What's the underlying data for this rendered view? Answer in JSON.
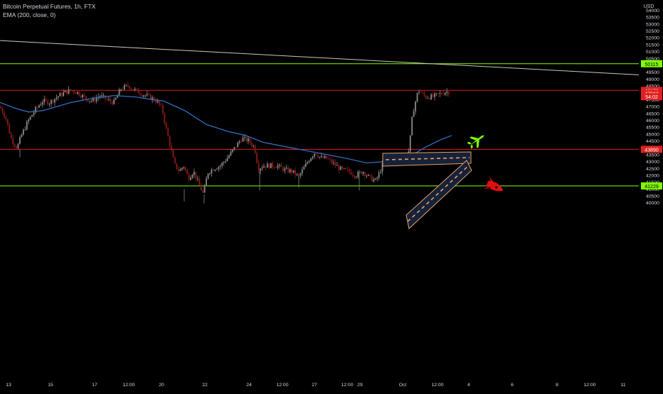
{
  "header": {
    "symbol_line": "Bitcoin Perpetual Futures, 1h, FTX",
    "indicator_line": "EMA (200, close, 0)"
  },
  "price_axis": {
    "currency_label": "USD",
    "ticks": [
      "54000",
      "53500",
      "53000",
      "52500",
      "52000",
      "51500",
      "51000",
      "50500",
      "50000",
      "49500",
      "49000",
      "48500",
      "48000",
      "47500",
      "47000",
      "46500",
      "46000",
      "45500",
      "45000",
      "44500",
      "44000",
      "43500",
      "43000",
      "42500",
      "42000",
      "41500",
      "41000",
      "40500",
      "40000"
    ]
  },
  "time_axis": {
    "labels": [
      "13",
      "15",
      "17",
      "12:00",
      "20",
      "22",
      "24",
      "12:00",
      "27",
      "12:00",
      "29",
      "Oct",
      "12:00",
      "4",
      "6",
      "8",
      "12:00",
      "11"
    ]
  },
  "price_tags": [
    {
      "id": "level-50115",
      "text": "50115",
      "price": 50115,
      "color": "#7fff00",
      "text_color": "#000000"
    },
    {
      "id": "level-48176",
      "text": "48176",
      "price": 48176,
      "color": "#e02020",
      "text_color": "#ffffff"
    },
    {
      "id": "last-price",
      "text": "47962",
      "price": 47962,
      "color": "#e02020",
      "text_color": "#ffffff"
    },
    {
      "id": "countdown",
      "text": "54:02",
      "price": 47715,
      "color": "#e02020",
      "text_color": "#ffffff"
    },
    {
      "id": "level-43890",
      "text": "43890",
      "price": 43890,
      "color": "#e02020",
      "text_color": "#ffffff"
    },
    {
      "id": "level-41229",
      "text": "41229",
      "price": 41229,
      "color": "#7fff00",
      "text_color": "#000000"
    }
  ],
  "colors": {
    "background": "#000000",
    "up_candle": "#8a8a8a",
    "down_candle": "#8b1a1a",
    "ema": "#2f6fbf",
    "support_green": "#7fff00",
    "resistance_red": "#e02020",
    "trendline": "#c8c8b4",
    "runway": "#16213a",
    "runway_edge": "#e8a060",
    "plane_icon": "#7fff00",
    "rocket_icon": "#e01010",
    "axis_text": "#d1d4dc"
  },
  "chart_data": {
    "type": "candlestick",
    "instrument": "Bitcoin Perpetual Futures",
    "timeframe": "1h",
    "exchange": "FTX",
    "ylim": [
      39900,
      54300
    ],
    "x_tick_labels": [
      "13",
      "15",
      "17",
      "12:00",
      "20",
      "22",
      "24",
      "12:00",
      "27",
      "12:00",
      "29",
      "Oct",
      "12:00",
      "4",
      "6",
      "8",
      "12:00",
      "11"
    ],
    "price_path": [
      [
        0,
        47000
      ],
      [
        8,
        46200
      ],
      [
        16,
        44600
      ],
      [
        24,
        44000
      ],
      [
        30,
        44900
      ],
      [
        40,
        46000
      ],
      [
        50,
        46800
      ],
      [
        60,
        47400
      ],
      [
        70,
        47300
      ],
      [
        80,
        47700
      ],
      [
        90,
        48000
      ],
      [
        100,
        48200
      ],
      [
        110,
        48000
      ],
      [
        120,
        47600
      ],
      [
        130,
        47400
      ],
      [
        140,
        47800
      ],
      [
        150,
        47500
      ],
      [
        160,
        47300
      ],
      [
        170,
        48300
      ],
      [
        180,
        48500
      ],
      [
        190,
        48200
      ],
      [
        200,
        47900
      ],
      [
        210,
        47700
      ],
      [
        220,
        47400
      ],
      [
        228,
        46800
      ],
      [
        233,
        45500
      ],
      [
        240,
        44000
      ],
      [
        245,
        42800
      ],
      [
        252,
        42300
      ],
      [
        258,
        42700
      ],
      [
        265,
        41800
      ],
      [
        272,
        42300
      ],
      [
        280,
        41300
      ],
      [
        286,
        40600
      ],
      [
        292,
        42200
      ],
      [
        300,
        42500
      ],
      [
        310,
        42700
      ],
      [
        320,
        43300
      ],
      [
        330,
        44000
      ],
      [
        340,
        44700
      ],
      [
        350,
        44500
      ],
      [
        358,
        44000
      ],
      [
        363,
        42500
      ],
      [
        370,
        42700
      ],
      [
        380,
        42700
      ],
      [
        390,
        42700
      ],
      [
        400,
        42400
      ],
      [
        410,
        42300
      ],
      [
        420,
        41900
      ],
      [
        428,
        42600
      ],
      [
        435,
        43200
      ],
      [
        443,
        43700
      ],
      [
        450,
        43300
      ],
      [
        460,
        43200
      ],
      [
        470,
        42800
      ],
      [
        480,
        42400
      ],
      [
        490,
        42300
      ],
      [
        500,
        42000
      ],
      [
        510,
        42300
      ],
      [
        520,
        41800
      ],
      [
        528,
        41600
      ],
      [
        532,
        42000
      ],
      [
        538,
        42800
      ],
      [
        548,
        43300
      ],
      [
        558,
        43200
      ],
      [
        568,
        43200
      ],
      [
        575,
        43800
      ],
      [
        580,
        46500
      ],
      [
        588,
        48200
      ],
      [
        598,
        47700
      ],
      [
        608,
        47700
      ],
      [
        618,
        47900
      ],
      [
        628,
        48100
      ],
      [
        632,
        48000
      ]
    ],
    "ema_200": [
      [
        0,
        47300
      ],
      [
        20,
        46900
      ],
      [
        40,
        46600
      ],
      [
        60,
        46700
      ],
      [
        80,
        47000
      ],
      [
        100,
        47300
      ],
      [
        130,
        47600
      ],
      [
        160,
        47800
      ],
      [
        190,
        47700
      ],
      [
        215,
        47500
      ],
      [
        230,
        47400
      ],
      [
        260,
        46700
      ],
      [
        290,
        45700
      ],
      [
        320,
        45200
      ],
      [
        345,
        44900
      ],
      [
        370,
        44400
      ],
      [
        400,
        44100
      ],
      [
        430,
        43800
      ],
      [
        460,
        43500
      ],
      [
        490,
        43200
      ],
      [
        515,
        42900
      ],
      [
        540,
        43000
      ],
      [
        565,
        43200
      ],
      [
        580,
        43500
      ],
      [
        600,
        44100
      ],
      [
        620,
        44600
      ],
      [
        635,
        44900
      ]
    ],
    "horizontal_levels": [
      {
        "price": 50115,
        "color": "green"
      },
      {
        "price": 48176,
        "color": "red"
      },
      {
        "price": 43890,
        "color": "red"
      },
      {
        "price": 41229,
        "color": "green"
      }
    ],
    "trendline": {
      "from": [
        0,
        51800
      ],
      "to": [
        900,
        49300
      ]
    },
    "last_price": 47962,
    "bar_countdown": "54:02",
    "annotations": [
      "runway-rectangle-horizontal",
      "runway-rectangle-rising",
      "airplane-icon",
      "rocket-icon"
    ]
  }
}
